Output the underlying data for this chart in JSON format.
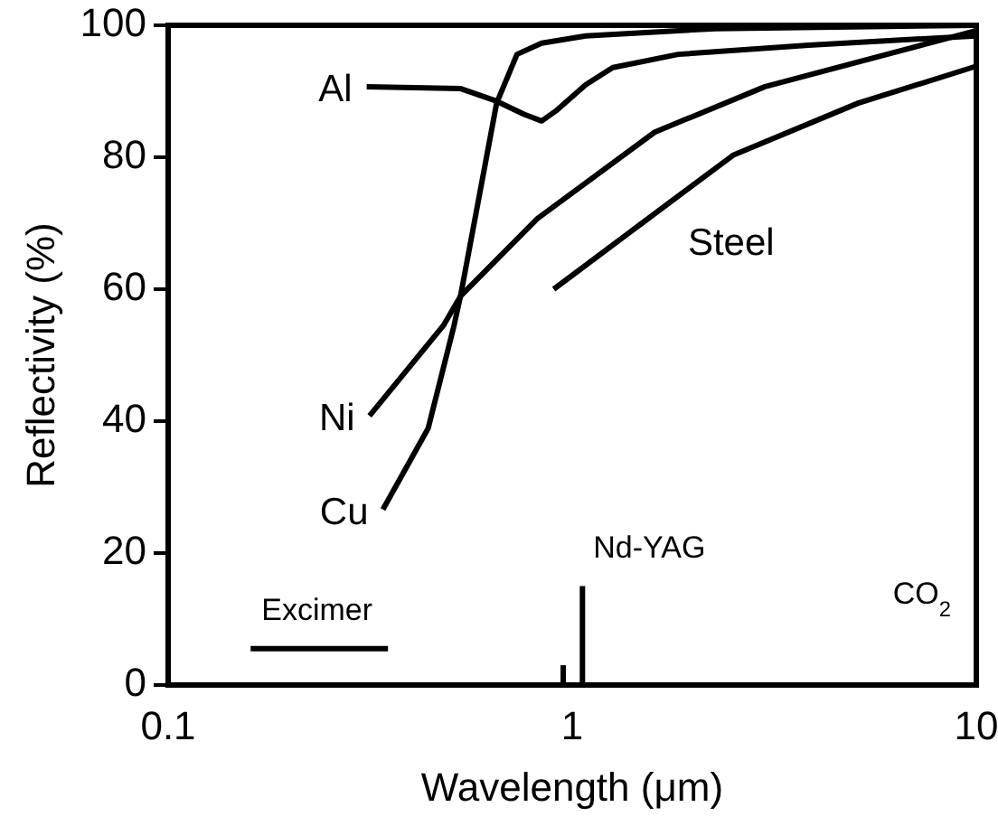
{
  "chart_data": {
    "type": "line",
    "xlabel": "Wavelength (μm)",
    "ylabel": "Reflectivity (%)",
    "log": "x",
    "xlim": [
      0.1,
      10
    ],
    "ylim": [
      0,
      100
    ],
    "xticks": [
      0.1,
      1,
      10
    ],
    "yticks": [
      0,
      20,
      40,
      60,
      80,
      100
    ],
    "marker": "none",
    "line_style": "solid",
    "series": [
      {
        "name": "Al",
        "color": "#000000",
        "x": [
          0.31,
          0.53,
          0.65,
          0.76,
          0.84,
          0.91,
          1.08,
          1.26,
          1.83,
          3.85,
          10
        ],
        "values": [
          90.7,
          90.4,
          88.5,
          86.5,
          85.5,
          87,
          91,
          93.6,
          95.6,
          97,
          98.4
        ]
      },
      {
        "name": "Ni",
        "color": "#000000",
        "x": [
          0.315,
          0.48,
          0.53,
          0.82,
          1.6,
          3.0,
          10
        ],
        "values": [
          40.8,
          54.5,
          59,
          70.7,
          83.8,
          90.7,
          99.2
        ]
      },
      {
        "name": "Cu",
        "color": "#000000",
        "x": [
          0.34,
          0.44,
          0.51,
          0.53,
          0.65,
          0.73,
          0.84,
          1.08,
          2.26,
          10
        ],
        "values": [
          26.6,
          38.9,
          54.5,
          59.2,
          88.2,
          95.6,
          97.3,
          98.4,
          99.5,
          100
        ]
      },
      {
        "name": "Steel",
        "color": "#000000",
        "x": [
          0.9,
          1.48,
          2.5,
          5.1,
          10
        ],
        "values": [
          60,
          69.9,
          80.3,
          88.2,
          93.8
        ]
      },
      {
        "color": "#000000",
        "x": [
          0.16,
          0.35
        ],
        "values": [
          5.5,
          5.5
        ]
      },
      {
        "color": "#000000",
        "x": [
          1.06,
          1.06
        ],
        "values": [
          0,
          15
        ]
      },
      {
        "color": "#000000",
        "x": [
          0.95,
          0.95
        ],
        "values": [
          0,
          3
        ]
      }
    ],
    "annotations": [
      {
        "text": "Excimer",
        "x": 0.16,
        "y": 5.5
      },
      {
        "text": "Nd-YAG",
        "x": 1.06,
        "y": 15
      },
      "CO$_{2}$"
    ]
  }
}
